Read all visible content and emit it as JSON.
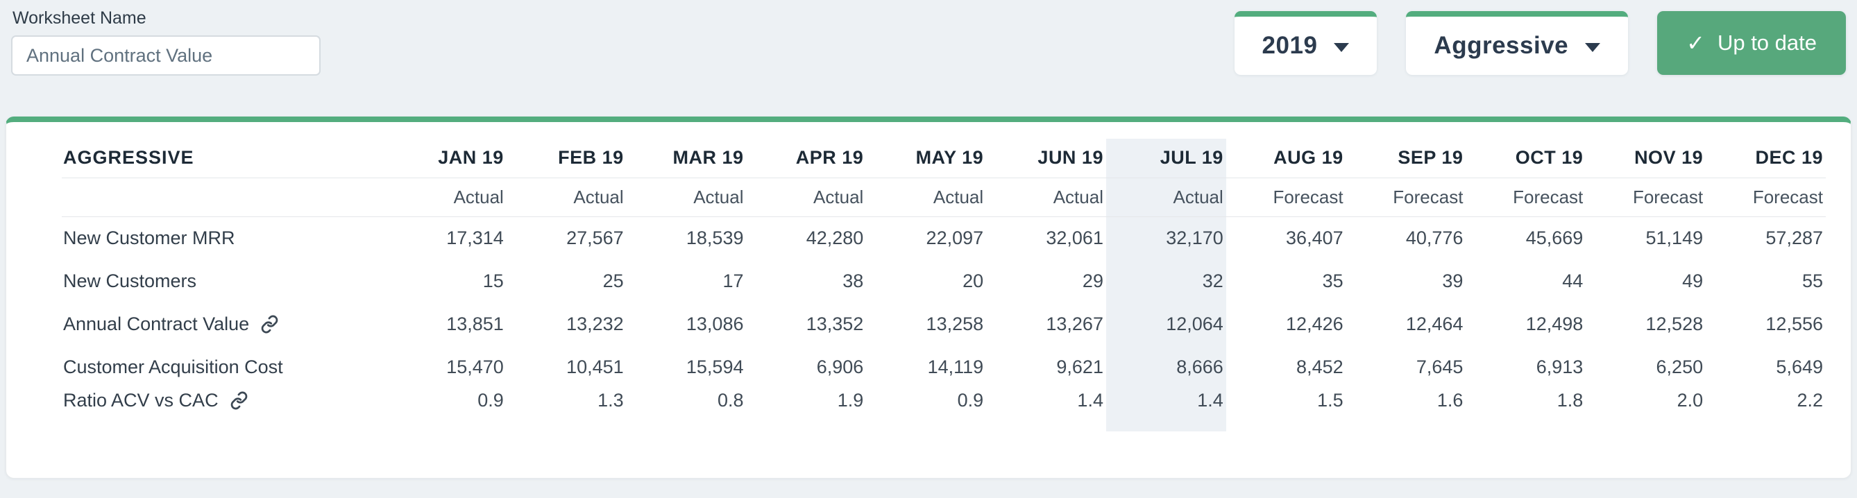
{
  "page": {
    "background_color": "#edf1f4",
    "accent_green": "#53ad7e",
    "highlight_color": "#edf1f5"
  },
  "worksheet": {
    "label": "Worksheet Name",
    "value": "Annual Contract Value"
  },
  "controls": {
    "year_dropdown": {
      "value": "2019"
    },
    "scenario_dropdown": {
      "value": "Aggressive"
    },
    "status_button": {
      "label": "Up to date",
      "icon": "check",
      "color": "#57a87c"
    }
  },
  "table": {
    "title": "AGGRESSIVE",
    "columns": [
      {
        "label": "JAN 19",
        "sublabel": "Actual",
        "highlighted": false
      },
      {
        "label": "FEB 19",
        "sublabel": "Actual",
        "highlighted": false
      },
      {
        "label": "MAR 19",
        "sublabel": "Actual",
        "highlighted": false
      },
      {
        "label": "APR 19",
        "sublabel": "Actual",
        "highlighted": false
      },
      {
        "label": "MAY 19",
        "sublabel": "Actual",
        "highlighted": false
      },
      {
        "label": "JUN 19",
        "sublabel": "Actual",
        "highlighted": false
      },
      {
        "label": "JUL 19",
        "sublabel": "Actual",
        "highlighted": true
      },
      {
        "label": "AUG 19",
        "sublabel": "Forecast",
        "highlighted": false
      },
      {
        "label": "SEP 19",
        "sublabel": "Forecast",
        "highlighted": false
      },
      {
        "label": "OCT 19",
        "sublabel": "Forecast",
        "highlighted": false
      },
      {
        "label": "NOV 19",
        "sublabel": "Forecast",
        "highlighted": false
      },
      {
        "label": "DEC 19",
        "sublabel": "Forecast",
        "highlighted": false
      }
    ],
    "rows": [
      {
        "label": "New Customer MRR",
        "linked": false,
        "values": [
          "17,314",
          "27,567",
          "18,539",
          "42,280",
          "22,097",
          "32,061",
          "32,170",
          "36,407",
          "40,776",
          "45,669",
          "51,149",
          "57,287"
        ]
      },
      {
        "label": "New Customers",
        "linked": false,
        "values": [
          "15",
          "25",
          "17",
          "38",
          "20",
          "29",
          "32",
          "35",
          "39",
          "44",
          "49",
          "55"
        ]
      },
      {
        "label": "Annual Contract Value",
        "linked": true,
        "values": [
          "13,851",
          "13,232",
          "13,086",
          "13,352",
          "13,258",
          "13,267",
          "12,064",
          "12,426",
          "12,464",
          "12,498",
          "12,528",
          "12,556"
        ]
      },
      {
        "label": "Customer Acquisition Cost",
        "linked": false,
        "values": [
          "15,470",
          "10,451",
          "15,594",
          "6,906",
          "14,119",
          "9,621",
          "8,666",
          "8,452",
          "7,645",
          "6,913",
          "6,250",
          "5,649"
        ]
      },
      {
        "label": "Ratio ACV vs CAC",
        "linked": true,
        "values": [
          "0.9",
          "1.3",
          "0.8",
          "1.9",
          "0.9",
          "1.4",
          "1.4",
          "1.5",
          "1.6",
          "1.8",
          "2.0",
          "2.2"
        ]
      }
    ]
  }
}
